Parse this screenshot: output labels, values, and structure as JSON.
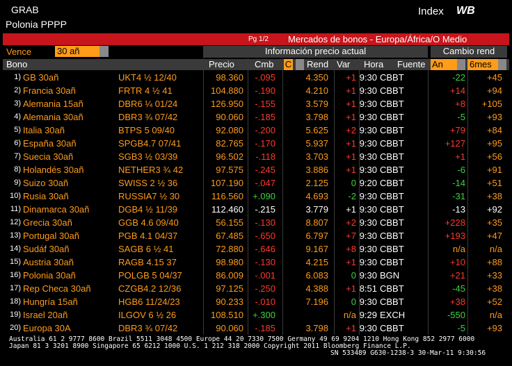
{
  "header": {
    "function": "GRAB",
    "security": "Polonia PPPP",
    "sector": "Index",
    "code": "WB",
    "page": "Pg 1/2",
    "title": "Mercados de bonos - Europa/África/O Medio"
  },
  "filter": {
    "label": "Vence",
    "value": "30 añ"
  },
  "groups": [
    "Información precio actual",
    "Cambio rend"
  ],
  "columns": [
    "Bono",
    "Precio",
    "Cmb",
    "C",
    "Rend",
    "Var",
    "Hora",
    "Fuente",
    "An",
    "6mes"
  ],
  "rows": [
    {
      "n": "1)",
      "bono": "GB 30añ",
      "ticker": "UKT4 ½ 12/40",
      "precio": "98.360",
      "cmb": "-.095",
      "rend": "4.350",
      "var": "+1",
      "hora": "9:30",
      "fuente": "CBBT",
      "an": "-22",
      "m6": "+45"
    },
    {
      "n": "2)",
      "bono": "Francia 30añ",
      "ticker": "FRTR 4 ½ 41",
      "precio": "104.880",
      "cmb": "-.190",
      "rend": "4.210",
      "var": "+1",
      "hora": "9:30",
      "fuente": "CBBT",
      "an": "+14",
      "m6": "+94"
    },
    {
      "n": "3)",
      "bono": "Alemania 15añ",
      "ticker": "DBR6 ¼ 01/24",
      "precio": "126.950",
      "cmb": "-.155",
      "rend": "3.579",
      "var": "+1",
      "hora": "9:30",
      "fuente": "CBBT",
      "an": "+8",
      "m6": "+105"
    },
    {
      "n": "4)",
      "bono": "Alemania 30añ",
      "ticker": "DBR3 ¾ 07/42",
      "precio": "90.060",
      "cmb": "-.185",
      "rend": "3.798",
      "var": "+1",
      "hora": "9:30",
      "fuente": "CBBT",
      "an": "-5",
      "m6": "+93"
    },
    {
      "n": "5)",
      "bono": "Italia 30añ",
      "ticker": "BTPS 5 09/40",
      "precio": "92.080",
      "cmb": "-.200",
      "rend": "5.625",
      "var": "+2",
      "hora": "9:30",
      "fuente": "CBBT",
      "an": "+79",
      "m6": "+84"
    },
    {
      "n": "6)",
      "bono": "España 30añ",
      "ticker": "SPGB4.7 07/41",
      "precio": "82.765",
      "cmb": "-.170",
      "rend": "5.937",
      "var": "+1",
      "hora": "9:30",
      "fuente": "CBBT",
      "an": "+127",
      "m6": "+95"
    },
    {
      "n": "7)",
      "bono": "Suecia 30añ",
      "ticker": "SGB3 ½ 03/39",
      "precio": "96.502",
      "cmb": "-.118",
      "rend": "3.703",
      "var": "+1",
      "hora": "9:30",
      "fuente": "CBBT",
      "an": "+1",
      "m6": "+56"
    },
    {
      "n": "8)",
      "bono": "Holandés 30añ",
      "ticker": "NETHER3 ¾ 42",
      "precio": "97.575",
      "cmb": "-.245",
      "rend": "3.886",
      "var": "+1",
      "hora": "9:30",
      "fuente": "CBBT",
      "an": "-6",
      "m6": "+91"
    },
    {
      "n": "9)",
      "bono": "Suizo 30añ",
      "ticker": "SWISS 2 ½ 36",
      "precio": "107.190",
      "cmb": "-.047",
      "rend": "2.125",
      "var": "0",
      "hora": "9:20",
      "fuente": "CBBT",
      "an": "-14",
      "m6": "+51"
    },
    {
      "n": "10)",
      "bono": "Rusia 30añ",
      "ticker": "RUSSIA7 ½ 30",
      "precio": "116.560",
      "cmb": "+.090",
      "rend": "4.693",
      "var": "-2",
      "hora": "9:30",
      "fuente": "CBBT",
      "an": "-31",
      "m6": "+38"
    },
    {
      "n": "11)",
      "bono": "Dinamarca 30añ",
      "ticker": "DGB4 ½ 11/39",
      "precio": "112.460",
      "cmb": "-.215",
      "rend": "3.779",
      "var": "+1",
      "hora": "9:30",
      "fuente": "CBBT",
      "an": "-13",
      "m6": "+92"
    },
    {
      "n": "12)",
      "bono": "Grecia 30añ",
      "ticker": "GGB 4.6 09/40",
      "precio": "56.155",
      "cmb": "-.130",
      "rend": "8.807",
      "var": "+2",
      "hora": "9:30",
      "fuente": "CBBT",
      "an": "+228",
      "m6": "+35"
    },
    {
      "n": "13)",
      "bono": "Portugal 30añ",
      "ticker": "PGB 4.1 04/37",
      "precio": "67.485",
      "cmb": "-.650",
      "rend": "6.797",
      "var": "+7",
      "hora": "9:30",
      "fuente": "CBBT",
      "an": "+193",
      "m6": "+47"
    },
    {
      "n": "14)",
      "bono": "Sudáf 30añ",
      "ticker": "SAGB 6 ½ 41",
      "precio": "72.880",
      "cmb": "-.646",
      "rend": "9.167",
      "var": "+8",
      "hora": "9:30",
      "fuente": "CBBT",
      "an": "n/a",
      "m6": "n/a"
    },
    {
      "n": "15)",
      "bono": "Austria 30añ",
      "ticker": "RAGB 4.15 37",
      "precio": "98.980",
      "cmb": "-.130",
      "rend": "4.215",
      "var": "+1",
      "hora": "9:30",
      "fuente": "CBBT",
      "an": "+10",
      "m6": "+88"
    },
    {
      "n": "16)",
      "bono": "Polonia 30añ",
      "ticker": "POLGB 5 04/37",
      "precio": "86.009",
      "cmb": "-.001",
      "rend": "6.083",
      "var": "0",
      "hora": "9:30",
      "fuente": "BGN",
      "an": "+21",
      "m6": "+33"
    },
    {
      "n": "17)",
      "bono": "Rep Checa 30añ",
      "ticker": "CZGB4.2 12/36",
      "precio": "97.125",
      "cmb": "-.250",
      "rend": "4.388",
      "var": "+1",
      "hora": "8:51",
      "fuente": "CBBT",
      "an": "-45",
      "m6": "+38"
    },
    {
      "n": "18)",
      "bono": "Hungría 15añ",
      "ticker": "HGB6 11/24/23",
      "precio": "90.233",
      "cmb": "-.010",
      "rend": "7.196",
      "var": "0",
      "hora": "9:30",
      "fuente": "CBBT",
      "an": "+38",
      "m6": "+52"
    },
    {
      "n": "19)",
      "bono": "Israel 20añ",
      "ticker": "ILGOV 6 ½ 26",
      "precio": "108.510",
      "cmb": "+.300",
      "var": "n/a",
      "hora": "9:29",
      "fuente": "EXCH",
      "an": "-550",
      "m6": "n/a"
    },
    {
      "n": "20)",
      "bono": "Europa 30A",
      "ticker": "DBR3 ¾ 07/42",
      "precio": "90.060",
      "cmb": "-.185",
      "rend": "3.798",
      "var": "+1",
      "hora": "9:30",
      "fuente": "CBBT",
      "an": "-5",
      "m6": "+93"
    }
  ],
  "footer": [
    "Australia 61 2 9777 8600 Brazil 5511 3048 4500 Europe 44 20 7330 7500 Germany 49 69 9204 1210 Hong Kong 852 2977 6000",
    "Japan 81 3 3201 8900      Singapore 65 6212 1000      U.S. 1 212 318 2000      Copyright 2011 Bloomberg Finance L.P.",
    "SN 533489 G630-1238-3 30-Mar-11  9:30:56"
  ]
}
